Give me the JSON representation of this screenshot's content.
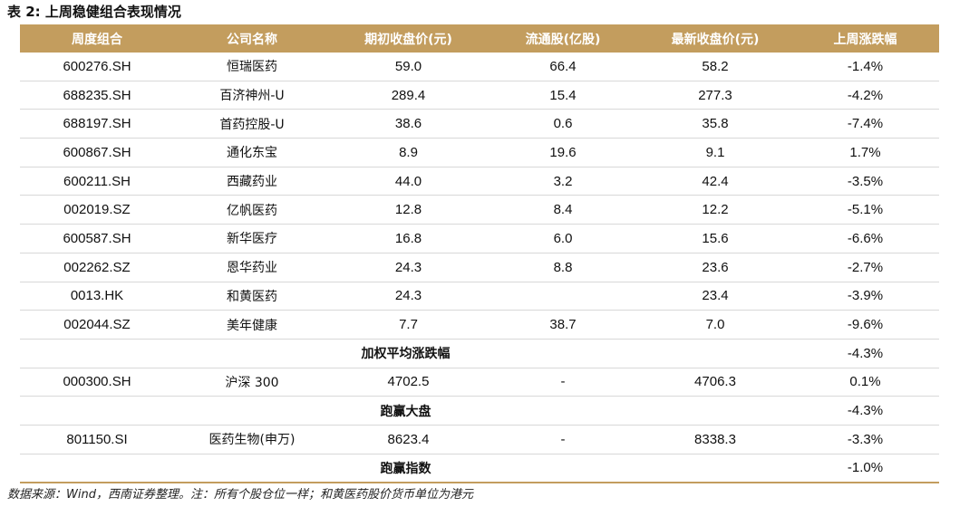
{
  "caption": "表 2:  上周稳健组合表现情况",
  "headers": [
    "周度组合",
    "公司名称",
    "期初收盘价(元)",
    "流通股(亿股)",
    "最新收盘价(元)",
    "上周涨跌幅"
  ],
  "rows": [
    [
      "600276.SH",
      "恒瑞医药",
      "59.0",
      "66.4",
      "58.2",
      "-1.4%"
    ],
    [
      "688235.SH",
      "百济神州-U",
      "289.4",
      "15.4",
      "277.3",
      "-4.2%"
    ],
    [
      "688197.SH",
      "首药控股-U",
      "38.6",
      "0.6",
      "35.8",
      "-7.4%"
    ],
    [
      "600867.SH",
      "通化东宝",
      "8.9",
      "19.6",
      "9.1",
      "1.7%"
    ],
    [
      "600211.SH",
      "西藏药业",
      "44.0",
      "3.2",
      "42.4",
      "-3.5%"
    ],
    [
      "002019.SZ",
      "亿帆医药",
      "12.8",
      "8.4",
      "12.2",
      "-5.1%"
    ],
    [
      "600587.SH",
      "新华医疗",
      "16.8",
      "6.0",
      "15.6",
      "-6.6%"
    ],
    [
      "002262.SZ",
      "恩华药业",
      "24.3",
      "8.8",
      "23.6",
      "-2.7%"
    ],
    [
      "0013.HK",
      "和黄医药",
      "24.3",
      "",
      "23.4",
      "-3.9%"
    ],
    [
      "002044.SZ",
      "美年健康",
      "7.7",
      "38.7",
      "7.0",
      "-9.6%"
    ]
  ],
  "weighted_avg": {
    "label": "加权平均涨跌幅",
    "value": "-4.3%"
  },
  "hs300": [
    "000300.SH",
    "沪深 300",
    "4702.5",
    "-",
    "4706.3",
    "0.1%"
  ],
  "beat_market": {
    "label": "跑赢大盘",
    "value": "-4.3%"
  },
  "sw_index": [
    "801150.SI",
    "医药生物(申万)",
    "8623.4",
    "-",
    "8338.3",
    "-3.3%"
  ],
  "beat_index": {
    "label": "跑赢指数",
    "value": "-1.0%"
  },
  "note": "数据来源：Wind，西南证券整理。注：所有个股仓位一样；和黄医药股价货币单位为港元",
  "colors": {
    "header_bg": "#c39d5e",
    "header_text": "#ffffff"
  }
}
